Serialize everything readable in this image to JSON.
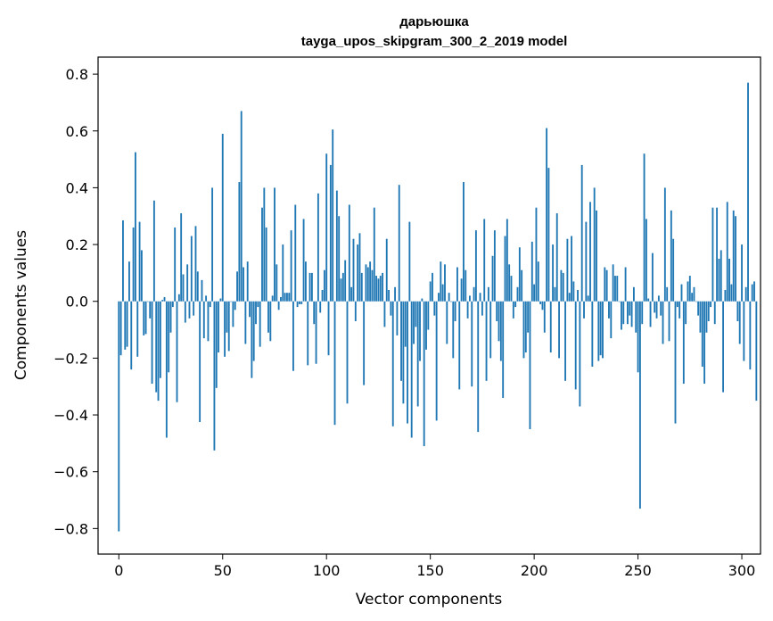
{
  "chart_data": {
    "type": "bar",
    "title_line1": "дарьюшка",
    "title_line2": "tayga_upos_skipgram_300_2_2019 model",
    "xlabel": "Vector components",
    "ylabel": "Components values",
    "xlim": [
      -10,
      309
    ],
    "ylim": [
      -0.89,
      0.86
    ],
    "xticks": [
      0,
      50,
      100,
      150,
      200,
      250,
      300
    ],
    "xtick_labels": [
      "0",
      "50",
      "100",
      "150",
      "200",
      "250",
      "300"
    ],
    "yticks": [
      -0.8,
      -0.6,
      -0.4,
      -0.2,
      0.0,
      0.2,
      0.4,
      0.6,
      0.8
    ],
    "ytick_labels": [
      "−0.8",
      "−0.6",
      "−0.4",
      "−0.2",
      "0.0",
      "0.2",
      "0.4",
      "0.6",
      "0.8"
    ],
    "bar_color": "#1f77b4",
    "values": [
      -0.81,
      -0.19,
      0.285,
      -0.17,
      -0.16,
      0.14,
      -0.24,
      0.26,
      0.525,
      -0.195,
      0.28,
      0.18,
      -0.12,
      -0.115,
      0.0,
      -0.06,
      -0.29,
      0.355,
      -0.32,
      -0.35,
      -0.27,
      0.005,
      0.015,
      -0.48,
      -0.25,
      -0.11,
      -0.02,
      0.26,
      -0.355,
      0.025,
      0.31,
      0.095,
      -0.075,
      0.13,
      -0.06,
      0.23,
      -0.05,
      0.265,
      0.105,
      -0.425,
      0.075,
      -0.13,
      0.02,
      -0.14,
      -0.02,
      0.4,
      -0.525,
      -0.305,
      -0.18,
      0.01,
      0.59,
      -0.195,
      -0.11,
      -0.175,
      0.0,
      -0.09,
      -0.03,
      0.105,
      0.42,
      0.67,
      0.12,
      -0.15,
      0.14,
      -0.055,
      -0.27,
      -0.21,
      -0.08,
      -0.02,
      -0.16,
      0.33,
      0.4,
      0.26,
      -0.11,
      -0.14,
      0.02,
      0.4,
      0.13,
      -0.03,
      0.015,
      0.2,
      0.03,
      0.03,
      0.03,
      0.25,
      -0.245,
      0.34,
      -0.02,
      -0.01,
      -0.01,
      0.29,
      0.14,
      -0.225,
      0.1,
      0.1,
      -0.08,
      -0.22,
      0.38,
      -0.04,
      0.04,
      0.11,
      0.52,
      -0.19,
      0.48,
      0.605,
      -0.435,
      0.39,
      0.3,
      0.08,
      0.1,
      0.145,
      -0.36,
      0.34,
      0.05,
      0.22,
      -0.07,
      0.2,
      0.24,
      0.1,
      -0.295,
      0.13,
      0.12,
      0.14,
      0.11,
      0.33,
      0.09,
      0.08,
      0.09,
      0.1,
      -0.09,
      0.22,
      0.04,
      -0.05,
      -0.44,
      0.05,
      -0.12,
      0.41,
      -0.28,
      -0.36,
      -0.16,
      -0.43,
      0.28,
      -0.48,
      -0.15,
      -0.09,
      -0.37,
      -0.21,
      0.01,
      -0.51,
      -0.17,
      -0.1,
      0.07,
      0.1,
      -0.05,
      -0.42,
      0.03,
      0.14,
      0.06,
      0.13,
      -0.15,
      0.03,
      0.0,
      -0.2,
      -0.07,
      0.12,
      -0.31,
      0.08,
      0.42,
      0.11,
      -0.06,
      0.02,
      -0.3,
      0.05,
      0.25,
      -0.46,
      0.03,
      -0.05,
      0.29,
      -0.28,
      0.05,
      -0.2,
      0.16,
      0.25,
      -0.07,
      -0.14,
      -0.21,
      -0.34,
      0.23,
      0.29,
      0.13,
      0.09,
      -0.06,
      -0.02,
      0.05,
      0.19,
      0.11,
      -0.2,
      -0.18,
      -0.11,
      -0.45,
      0.21,
      0.06,
      0.33,
      0.14,
      -0.01,
      -0.03,
      -0.11,
      0.61,
      0.47,
      -0.18,
      0.2,
      0.05,
      0.31,
      -0.2,
      0.11,
      0.1,
      -0.28,
      0.22,
      0.03,
      0.23,
      0.07,
      -0.31,
      0.04,
      -0.37,
      0.48,
      -0.06,
      0.28,
      0.02,
      0.35,
      -0.23,
      0.4,
      0.32,
      -0.21,
      -0.19,
      -0.2,
      0.12,
      0.11,
      -0.06,
      -0.13,
      0.13,
      0.09,
      0.09,
      0.0,
      -0.1,
      -0.08,
      0.12,
      -0.08,
      -0.05,
      -0.09,
      0.05,
      -0.11,
      -0.25,
      -0.73,
      -0.08,
      0.52,
      0.29,
      0.01,
      -0.09,
      0.17,
      -0.04,
      -0.06,
      0.02,
      -0.05,
      -0.15,
      0.4,
      0.05,
      -0.14,
      0.32,
      0.22,
      -0.43,
      -0.02,
      -0.06,
      0.06,
      -0.29,
      -0.08,
      0.07,
      0.09,
      0.03,
      0.05,
      0.0,
      -0.05,
      -0.11,
      -0.23,
      -0.29,
      -0.11,
      -0.07,
      -0.02,
      0.33,
      -0.08,
      0.33,
      0.15,
      0.18,
      -0.32,
      0.04,
      0.35,
      0.15,
      0.06,
      0.32,
      0.3,
      -0.07,
      -0.15,
      0.2,
      -0.21,
      0.05,
      0.77,
      -0.24,
      0.06,
      0.07,
      -0.35
    ]
  }
}
